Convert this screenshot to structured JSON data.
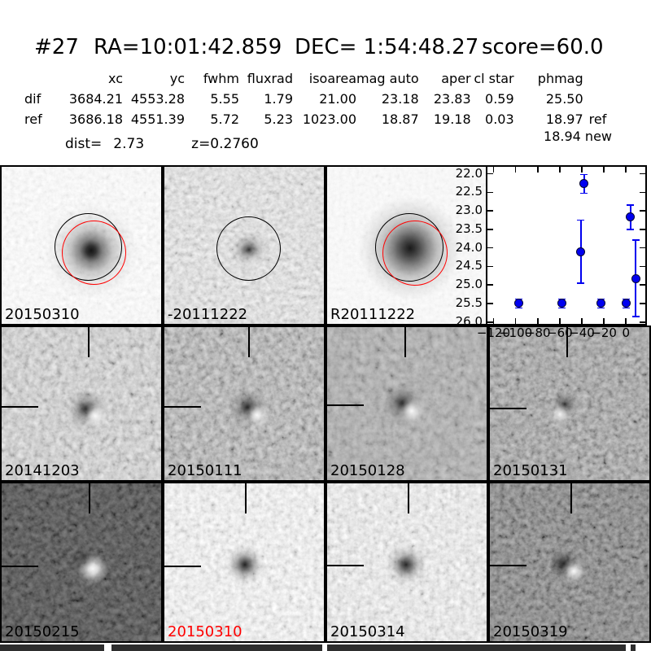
{
  "header": {
    "candidate_id": "#27",
    "ra_label": "RA=10:01:42.859",
    "dec_label": "DEC= 1:54:48.27",
    "score_label": "score=60.0"
  },
  "table": {
    "columns": [
      "xc",
      "yc",
      "fwhm",
      "fluxrad",
      "isoarea",
      "mag auto",
      "aper",
      "cl star",
      "phmag"
    ],
    "rows": [
      {
        "label": "dif",
        "cells": [
          "3684.21",
          "4553.28",
          "5.55",
          "1.79",
          "21.00",
          "23.18",
          "23.83",
          "0.59",
          "25.50"
        ],
        "suffix": ""
      },
      {
        "label": "ref",
        "cells": [
          "3686.18",
          "4551.39",
          "5.72",
          "5.23",
          "1023.00",
          "18.87",
          "19.18",
          "0.03",
          "18.97"
        ],
        "suffix": "ref"
      }
    ],
    "extra_phmag": "18.94 new",
    "dist_label": "dist=",
    "dist_value": "2.73",
    "z_label": "z=0.2760"
  },
  "cutouts": [
    {
      "label": "20150310",
      "role": "new image",
      "highlight": false
    },
    {
      "label": "-20111222",
      "role": "difference image",
      "highlight": false
    },
    {
      "label": "R20111222",
      "role": "reference image",
      "highlight": false
    },
    {
      "label": "20141203",
      "role": "difference epoch",
      "highlight": false
    },
    {
      "label": "20150111",
      "role": "difference epoch",
      "highlight": false
    },
    {
      "label": "20150128",
      "role": "difference epoch",
      "highlight": false
    },
    {
      "label": "20150131",
      "role": "difference epoch",
      "highlight": false
    },
    {
      "label": "20150215",
      "role": "difference epoch",
      "highlight": false
    },
    {
      "label": "20150310",
      "role": "difference epoch (discovery)",
      "highlight": true
    },
    {
      "label": "20150314",
      "role": "difference epoch",
      "highlight": false
    },
    {
      "label": "20150319",
      "role": "difference epoch",
      "highlight": false
    }
  ],
  "colors": {
    "aperture_black": "#000000",
    "aperture_red": "#ff0000",
    "point_blue": "#0000f0",
    "highlight_label_red": "#ff0000"
  },
  "chart_data": {
    "type": "scatter",
    "title": "",
    "xlabel": "",
    "ylabel": "",
    "x": [
      -97,
      -58,
      -41,
      -38,
      -23,
      0,
      4,
      9
    ],
    "y": [
      25.5,
      25.5,
      24.1,
      22.27,
      25.5,
      25.5,
      23.17,
      24.82
    ],
    "yerr": [
      0.12,
      0.12,
      0.85,
      0.25,
      0.12,
      0.12,
      0.33,
      1.03
    ],
    "marker": "o",
    "color": "#0000f0",
    "grid": false,
    "legend": "none",
    "y_inverted": true,
    "xlim": [
      -125.5,
      17.5
    ],
    "ylim": [
      21.81,
      26.05
    ],
    "xticks": [
      -120,
      -100,
      -80,
      -60,
      -40,
      -20,
      0
    ],
    "xtick_labels": [
      "−120",
      "−100",
      "−80",
      "−60",
      "−40",
      "−20",
      "0"
    ],
    "yticks": [
      22.0,
      22.5,
      23.0,
      23.5,
      24.0,
      24.5,
      25.0,
      25.5,
      26.0
    ],
    "ytick_labels": [
      "22.0",
      "22.5",
      "23.0",
      "23.5",
      "24.0",
      "24.5",
      "25.0",
      "25.5",
      "26.0"
    ]
  }
}
